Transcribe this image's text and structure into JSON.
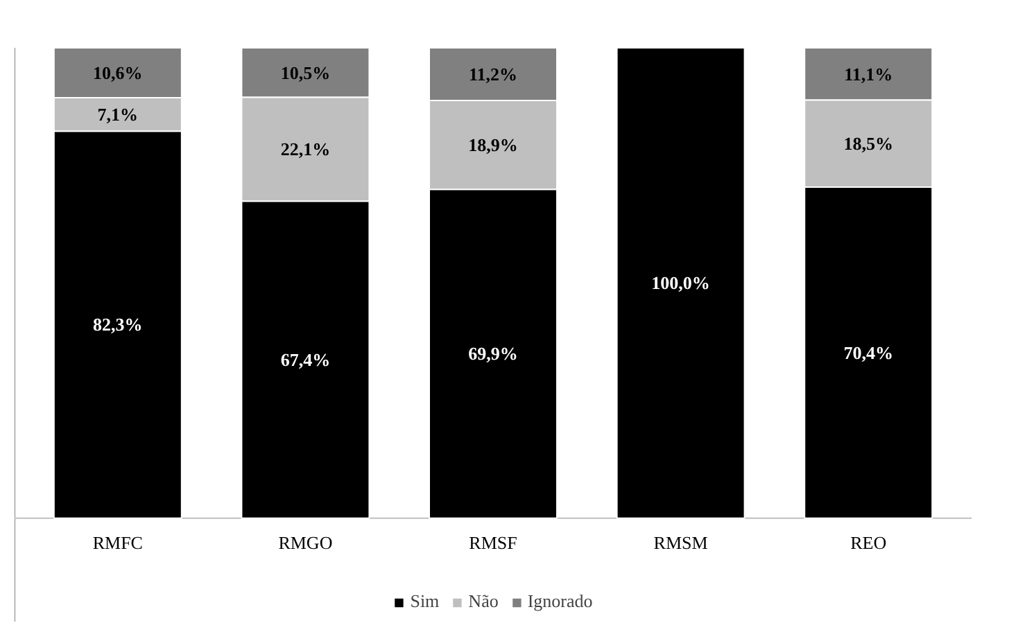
{
  "chart_data": {
    "type": "bar",
    "stacked": true,
    "legend": "bottom",
    "categories": [
      "RMFC",
      "RMGO",
      "RMSF",
      "RMSM",
      "REO"
    ],
    "series": [
      {
        "name": "Sim",
        "color": "#000000",
        "values": [
          82.3,
          67.4,
          69.9,
          100.0,
          70.4
        ],
        "value_labels": [
          "82,3%",
          "67,4%",
          "69,9%",
          "100,0%",
          "70,4%"
        ]
      },
      {
        "name": "Não",
        "color": "#bfbfbf",
        "values": [
          7.1,
          22.1,
          18.9,
          null,
          18.5
        ],
        "value_labels": [
          "7,1%",
          "22,1%",
          "18,9%",
          null,
          "18,5%"
        ]
      },
      {
        "name": "Ignorado",
        "color": "#808080",
        "values": [
          10.6,
          10.5,
          11.2,
          null,
          11.1
        ],
        "value_labels": [
          "10,6%",
          "10,5%",
          "11,2%",
          null,
          "11,1%"
        ]
      }
    ]
  }
}
